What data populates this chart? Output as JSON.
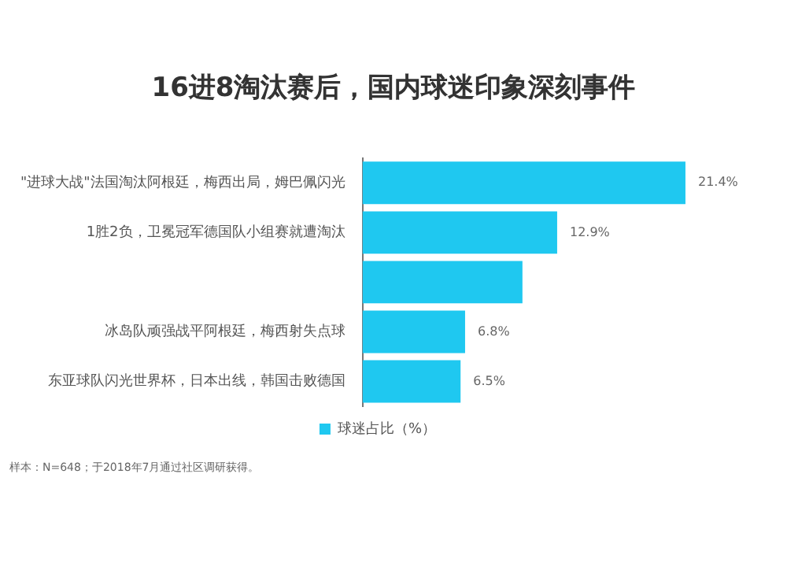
{
  "chart_data": {
    "type": "bar",
    "orientation": "horizontal",
    "title": "16进8淘汰赛后，国内球迷印象深刻事件",
    "categories": [
      "\"进球大战\"法国淘汰阿根廷，梅西出局，姆巴佩闪光",
      "1胜2负，卫冕冠军德国队小组赛就遭淘汰",
      null,
      "冰岛队顽强战平阿根廷，梅西射失点球",
      "东亚球队闪光世界杯，日本出线，韩国击败德国"
    ],
    "series": [
      {
        "name": "球迷占比（%）",
        "color": "#1fc8f0",
        "values": [
          21.4,
          12.9,
          10.6,
          6.8,
          6.5
        ],
        "value_labels": [
          "21.4%",
          "12.9%",
          null,
          "6.8%",
          "6.5%"
        ]
      }
    ],
    "legend": "bottom",
    "grid": false,
    "tick_labels": "y",
    "annotations": [
      "样本：N=648；于2018年7月通过社区调研获得。"
    ]
  }
}
